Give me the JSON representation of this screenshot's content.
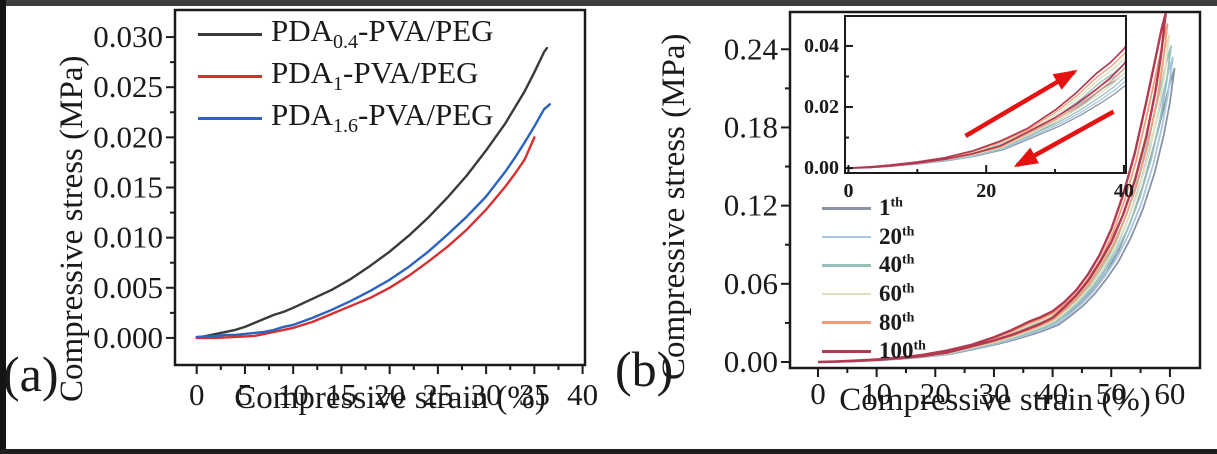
{
  "figure": {
    "background": "#ffffff",
    "border_color_top": "#3d3d3d",
    "border_color_left": "#141414",
    "border_color_bottom": "#1f1f1f"
  },
  "chart_data": [
    {
      "type": "line",
      "panel_label": "(a)",
      "xlabel": "Compressive strain (%)",
      "ylabel": "Compressive stress (MPa)",
      "xlim": [
        -2.25,
        40.25
      ],
      "ylim": [
        -0.0027,
        0.0327
      ],
      "xticks": [
        0,
        5,
        10,
        15,
        20,
        25,
        30,
        35,
        40
      ],
      "xminor_step": 2.5,
      "ytick_values": [
        0,
        0.005,
        0.01,
        0.015,
        0.02,
        0.025,
        0.03
      ],
      "ytick_labels": [
        "0.000",
        "0.005",
        "0.010",
        "0.015",
        "0.020",
        "0.025",
        "0.030"
      ],
      "yminor_step": 0.0025,
      "grid": false,
      "legend_position": "top-left-inside",
      "series": [
        {
          "name": "PDA0.4-PVA/PEG",
          "label_prefix": "PDA",
          "label_sub": "0.4",
          "label_suffix": "-PVA/PEG",
          "color": "#3a3a3a",
          "points": [
            [
              0,
              0
            ],
            [
              1,
              0.0002
            ],
            [
              2,
              0.0004
            ],
            [
              3,
              0.0006
            ],
            [
              4,
              0.0008
            ],
            [
              5,
              0.0011
            ],
            [
              6,
              0.0015
            ],
            [
              7,
              0.0019
            ],
            [
              8,
              0.0023
            ],
            [
              9,
              0.0026
            ],
            [
              10,
              0.003
            ],
            [
              12,
              0.0039
            ],
            [
              14,
              0.0048
            ],
            [
              16,
              0.0059
            ],
            [
              18,
              0.0072
            ],
            [
              20,
              0.0086
            ],
            [
              22,
              0.0102
            ],
            [
              24,
              0.012
            ],
            [
              26,
              0.014
            ],
            [
              28,
              0.0162
            ],
            [
              30,
              0.0187
            ],
            [
              32,
              0.0214
            ],
            [
              34,
              0.0246
            ],
            [
              35,
              0.0265
            ],
            [
              36,
              0.0285
            ],
            [
              36.3,
              0.0289
            ]
          ]
        },
        {
          "name": "PDA1-PVA/PEG",
          "label_prefix": "PDA",
          "label_sub": "1",
          "label_suffix": "-PVA/PEG",
          "color": "#d63031",
          "points": [
            [
              0,
              0
            ],
            [
              2,
              0
            ],
            [
              4,
              0.0001
            ],
            [
              6,
              0.0002
            ],
            [
              7,
              0.0004
            ],
            [
              8,
              0.0006
            ],
            [
              9,
              0.0008
            ],
            [
              10,
              0.001
            ],
            [
              12,
              0.0016
            ],
            [
              14,
              0.0024
            ],
            [
              16,
              0.0032
            ],
            [
              18,
              0.004
            ],
            [
              20,
              0.005
            ],
            [
              22,
              0.0062
            ],
            [
              24,
              0.0076
            ],
            [
              26,
              0.0091
            ],
            [
              28,
              0.0108
            ],
            [
              30,
              0.0128
            ],
            [
              32,
              0.0151
            ],
            [
              33,
              0.0164
            ],
            [
              34,
              0.0178
            ],
            [
              35,
              0.02
            ]
          ]
        },
        {
          "name": "PDA1.6-PVA/PEG",
          "label_prefix": "PDA",
          "label_sub": "1.6",
          "label_suffix": "-PVA/PEG",
          "color": "#2b63c1",
          "points": [
            [
              0,
              0.0001
            ],
            [
              2,
              0.0002
            ],
            [
              3,
              0.0003
            ],
            [
              4,
              0.0003
            ],
            [
              5,
              0.0004
            ],
            [
              6,
              0.0005
            ],
            [
              7,
              0.0006
            ],
            [
              8,
              0.0008
            ],
            [
              9,
              0.0011
            ],
            [
              10,
              0.0013
            ],
            [
              12,
              0.002
            ],
            [
              14,
              0.0028
            ],
            [
              16,
              0.0037
            ],
            [
              18,
              0.0047
            ],
            [
              20,
              0.0058
            ],
            [
              22,
              0.0071
            ],
            [
              24,
              0.0086
            ],
            [
              26,
              0.0103
            ],
            [
              28,
              0.0121
            ],
            [
              30,
              0.0141
            ],
            [
              32,
              0.0166
            ],
            [
              33,
              0.018
            ],
            [
              34,
              0.0195
            ],
            [
              35,
              0.0211
            ],
            [
              36,
              0.0228
            ],
            [
              36.6,
              0.0233
            ]
          ]
        }
      ]
    },
    {
      "type": "line",
      "panel_label": "(b)",
      "xlabel": "Compressive strain (%)",
      "ylabel": "Compressive stress (MPa)",
      "xlim": [
        -4.77,
        65.13
      ],
      "ylim": [
        -0.0046,
        0.2686
      ],
      "xticks": [
        0,
        10,
        20,
        30,
        40,
        50,
        60
      ],
      "xminor_step": 5,
      "ytick_values": [
        0,
        0.06,
        0.12,
        0.18,
        0.24
      ],
      "ytick_labels": [
        "0.00",
        "0.06",
        "0.12",
        "0.18",
        "0.24"
      ],
      "yminor_step": 0.03,
      "grid": false,
      "legend_position": "left-inside",
      "cycles": [
        {
          "num": "1",
          "sup": "th",
          "color": "#8a93a6",
          "dx": 1.5,
          "scale": 0.84,
          "lw": 1.8
        },
        {
          "num": "20",
          "sup": "th",
          "color": "#a6c5e3",
          "dx": 1.2,
          "scale": 0.872,
          "lw": 1.8
        },
        {
          "num": "40",
          "sup": "th",
          "color": "#98c0b8",
          "dx": 0.9,
          "scale": 0.904,
          "lw": 1.8
        },
        {
          "num": "60",
          "sup": "th",
          "color": "#dde0bd",
          "dx": 0.6,
          "scale": 0.936,
          "lw": 1.8
        },
        {
          "num": "80",
          "sup": "th",
          "color": "#f29b78",
          "dx": 0.3,
          "scale": 0.968,
          "lw": 1.8
        },
        {
          "num": "100",
          "sup": "th",
          "color": "#b13a52",
          "dx": 0,
          "scale": 1.0,
          "lw": 2.4
        }
      ],
      "base_loop": {
        "load": [
          [
            0,
            0
          ],
          [
            3,
            0.0004
          ],
          [
            6,
            0.001
          ],
          [
            10,
            0.002
          ],
          [
            14,
            0.0034
          ],
          [
            18,
            0.0056
          ],
          [
            22,
            0.0088
          ],
          [
            26,
            0.013
          ],
          [
            30,
            0.019
          ],
          [
            33,
            0.0245
          ],
          [
            36,
            0.031
          ],
          [
            38,
            0.0345
          ],
          [
            40,
            0.039
          ],
          [
            42,
            0.046
          ],
          [
            44,
            0.055
          ],
          [
            46,
            0.067
          ],
          [
            48,
            0.082
          ],
          [
            50,
            0.102
          ],
          [
            52,
            0.128
          ],
          [
            54,
            0.16
          ],
          [
            56,
            0.2
          ],
          [
            57.5,
            0.232
          ],
          [
            58.6,
            0.256
          ],
          [
            59.3,
            0.268
          ]
        ],
        "unload": [
          [
            59.3,
            0.268
          ],
          [
            58.5,
            0.236
          ],
          [
            57.5,
            0.207
          ],
          [
            56,
            0.173
          ],
          [
            54,
            0.139
          ],
          [
            52,
            0.113
          ],
          [
            50,
            0.092
          ],
          [
            48,
            0.076
          ],
          [
            46,
            0.062
          ],
          [
            44,
            0.051
          ],
          [
            42,
            0.042
          ],
          [
            40,
            0.034
          ],
          [
            38,
            0.0295
          ],
          [
            36,
            0.0258
          ],
          [
            33,
            0.0208
          ],
          [
            30,
            0.0165
          ],
          [
            26,
            0.0118
          ],
          [
            22,
            0.0072
          ],
          [
            18,
            0.0047
          ],
          [
            14,
            0.0029
          ],
          [
            10,
            0.0016
          ],
          [
            6,
            0.0007
          ],
          [
            3,
            0.0002
          ],
          [
            0,
            0
          ]
        ]
      },
      "inset": {
        "xlim": [
          -0.5,
          40.3
        ],
        "ylim": [
          -0.0016,
          0.0498
        ],
        "xticks": [
          0,
          20,
          40
        ],
        "xminor_step": 10,
        "ytick_values": [
          0,
          0.02,
          0.04
        ],
        "ytick_labels": [
          "0.00",
          "0.02",
          "0.04"
        ],
        "yminor_step": 0.01,
        "arrows": [
          {
            "name": "loading-direction-arrow",
            "color": "#e51212",
            "from": [
              17,
              0.0105
            ],
            "to": [
              32.8,
              0.0315
            ]
          },
          {
            "name": "unloading-direction-arrow",
            "color": "#e51212",
            "from": [
              38.5,
              0.0185
            ],
            "to": [
              24.5,
              0.001
            ]
          }
        ]
      }
    }
  ]
}
